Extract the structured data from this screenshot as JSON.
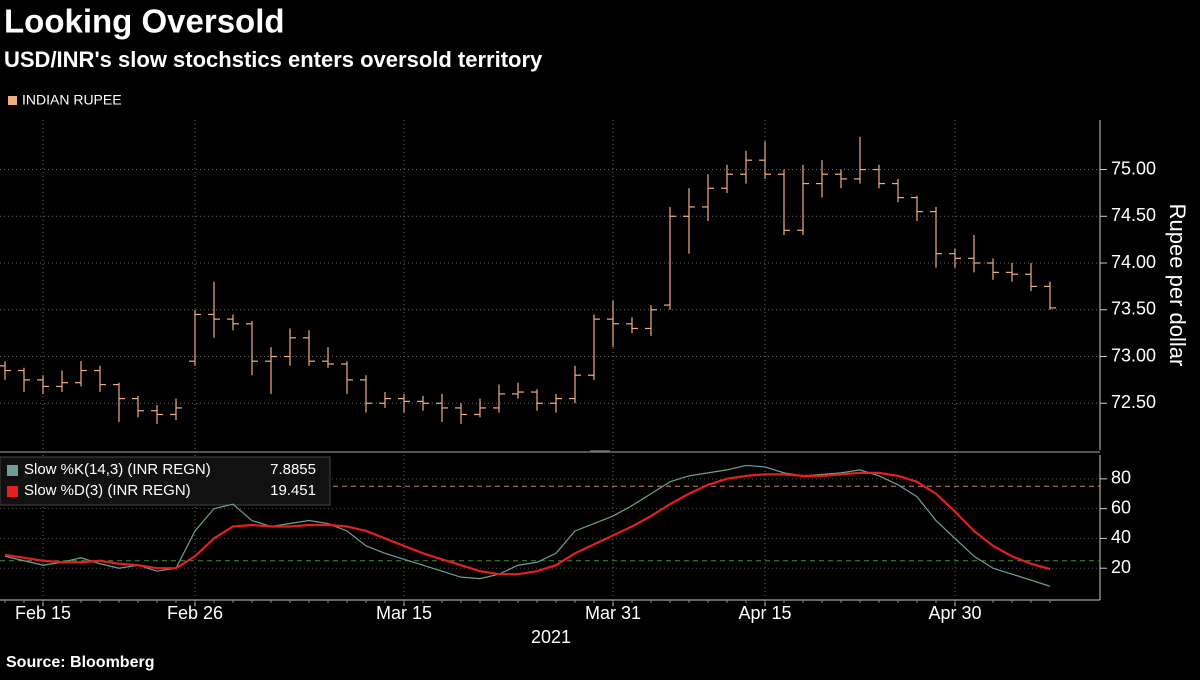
{
  "chart_data": [
    {
      "type": "ohlc",
      "title": "Looking Oversold",
      "subtitle": "USD/INR's slow stochstics enters oversold territory",
      "source": "Source: Bloomberg",
      "ylabel": "Rupee per dollar",
      "ylim": [
        72.0,
        75.53
      ],
      "yticks": [
        {
          "value": 72.5,
          "label": "72.50"
        },
        {
          "value": 73,
          "label": "73.00"
        },
        {
          "value": 73.5,
          "label": "73.50"
        },
        {
          "value": 74,
          "label": "74.00"
        },
        {
          "value": 74.5,
          "label": "74.50"
        },
        {
          "value": 75,
          "label": "75.00"
        }
      ],
      "grid": true,
      "legend": "top-left",
      "series": [
        {
          "name": "INDIAN RUPEE",
          "color": "#f0ac84",
          "open": [
            72.9,
            72.85,
            72.75,
            72.68,
            72.72,
            72.85,
            72.7,
            72.55,
            72.42,
            72.38,
            72.95,
            73.45,
            73.4,
            73.35,
            72.95,
            73.0,
            73.2,
            72.95,
            72.92,
            72.75,
            72.5,
            72.55,
            72.52,
            72.5,
            72.45,
            72.38,
            72.45,
            72.6,
            72.62,
            72.5,
            72.55,
            72.8,
            73.4,
            73.35,
            73.3,
            73.55,
            74.5,
            74.6,
            74.8,
            74.95,
            75.1,
            74.95,
            74.35,
            74.85,
            74.95,
            74.9,
            75.0,
            74.85,
            74.7,
            74.55,
            74.1,
            74.05,
            74.0,
            73.9,
            73.88,
            73.75
          ],
          "high": [
            72.95,
            72.88,
            72.8,
            72.85,
            72.95,
            72.9,
            72.72,
            72.58,
            72.48,
            72.55,
            73.5,
            73.8,
            73.45,
            73.38,
            73.1,
            73.3,
            73.28,
            73.1,
            72.95,
            72.8,
            72.62,
            72.6,
            72.58,
            72.6,
            72.5,
            72.55,
            72.7,
            72.72,
            72.65,
            72.6,
            72.9,
            73.45,
            73.6,
            73.42,
            73.55,
            74.6,
            74.8,
            74.95,
            75.05,
            75.2,
            75.3,
            75.0,
            75.05,
            75.1,
            75.0,
            75.35,
            75.05,
            74.9,
            74.72,
            74.6,
            74.15,
            74.3,
            74.05,
            74.0,
            74.0,
            73.8
          ],
          "low": [
            72.75,
            72.62,
            72.6,
            72.62,
            72.68,
            72.62,
            72.3,
            72.35,
            72.28,
            72.32,
            72.9,
            73.2,
            73.28,
            72.8,
            72.6,
            72.9,
            72.9,
            72.88,
            72.6,
            72.4,
            72.45,
            72.4,
            72.42,
            72.3,
            72.28,
            72.35,
            72.4,
            72.55,
            72.42,
            72.4,
            72.5,
            72.75,
            73.1,
            73.25,
            73.22,
            73.5,
            74.1,
            74.45,
            74.75,
            74.85,
            74.9,
            74.3,
            74.3,
            74.7,
            74.8,
            74.85,
            74.8,
            74.65,
            74.45,
            73.95,
            73.95,
            73.9,
            73.82,
            73.8,
            73.7,
            73.5
          ],
          "close": [
            72.85,
            72.75,
            72.68,
            72.72,
            72.85,
            72.7,
            72.55,
            72.42,
            72.38,
            72.45,
            73.45,
            73.4,
            73.35,
            72.95,
            73.0,
            73.2,
            72.95,
            72.92,
            72.75,
            72.5,
            72.55,
            72.52,
            72.5,
            72.45,
            72.38,
            72.45,
            72.6,
            72.62,
            72.5,
            72.55,
            72.8,
            73.4,
            73.35,
            73.3,
            73.5,
            74.5,
            74.6,
            74.8,
            74.95,
            75.1,
            74.95,
            74.35,
            74.85,
            74.95,
            74.9,
            75.0,
            74.85,
            74.7,
            74.55,
            74.1,
            74.05,
            74.0,
            73.9,
            73.88,
            73.75,
            73.52
          ]
        }
      ]
    },
    {
      "type": "line",
      "xlabel": "2021",
      "categories": [
        null,
        null,
        "Feb 15",
        null,
        null,
        null,
        null,
        null,
        null,
        null,
        "Feb 26",
        null,
        null,
        null,
        null,
        null,
        null,
        null,
        null,
        null,
        null,
        "Mar 15",
        null,
        null,
        null,
        null,
        null,
        null,
        null,
        null,
        null,
        null,
        "Mar 31",
        null,
        null,
        null,
        null,
        null,
        null,
        null,
        "Apr 15",
        null,
        null,
        null,
        null,
        null,
        null,
        null,
        null,
        null,
        "Apr 30",
        null,
        null,
        null,
        null,
        null
      ],
      "ylim": [
        0,
        96
      ],
      "yticks": [
        20,
        40,
        60,
        80
      ],
      "grid": true,
      "legend": "top-left",
      "reference_lines": [
        {
          "value": 75,
          "color": "#c98080"
        },
        {
          "value": 25,
          "color": "#3d8f3d"
        }
      ],
      "series": [
        {
          "name": "Slow %K(14,3) (INR REGN)",
          "color": "#6f9d99",
          "values": [
            28,
            25,
            22,
            24,
            27,
            23,
            20,
            22,
            18,
            20,
            45,
            60,
            63,
            52,
            48,
            50,
            52,
            50,
            45,
            35,
            30,
            26,
            22,
            18,
            14,
            13,
            16,
            22,
            24,
            30,
            45,
            50,
            55,
            62,
            70,
            78,
            82,
            84,
            86,
            89,
            88,
            84,
            82,
            83,
            84,
            86,
            82,
            76,
            68,
            52,
            40,
            28,
            20,
            16,
            12,
            7.8855
          ]
        },
        {
          "name": "Slow %D(3) (INR REGN)",
          "color": "#e3201c",
          "values": [
            29,
            27,
            25,
            24,
            24,
            25,
            23,
            22,
            20,
            20,
            28,
            40,
            48,
            49,
            48,
            48,
            49,
            49,
            48,
            45,
            40,
            35,
            30,
            26,
            22,
            18,
            16,
            16,
            18,
            22,
            30,
            36,
            42,
            48,
            55,
            63,
            70,
            76,
            80,
            82,
            83,
            83,
            82,
            82,
            83,
            84,
            84,
            82,
            78,
            70,
            58,
            45,
            35,
            28,
            23,
            19.451
          ]
        }
      ]
    }
  ]
}
